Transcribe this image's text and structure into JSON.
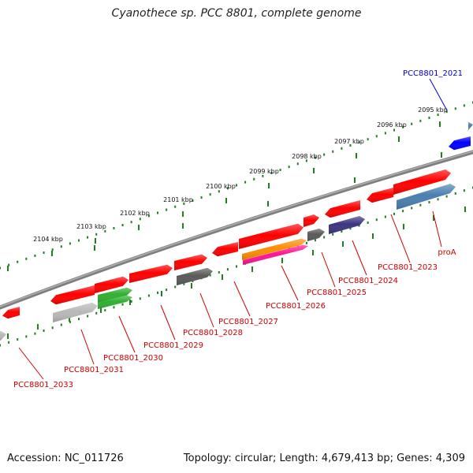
{
  "title": "Cyanothece sp. PCC 8801, complete genome",
  "footer": {
    "accession": "Accession: NC_011726",
    "summary": "Topology: circular; Length: 4,679,413 bp; Genes: 4,309"
  },
  "colors": {
    "backbone": "#7f7f7f",
    "tick_track": "#1f7f1f",
    "gene_red": "#ff0000",
    "gene_grey": "#5a5a5a",
    "gene_light_grey": "#b8b8b8",
    "gene_green": "#30b030",
    "gene_orange": "#ff8c00",
    "gene_magenta": "#ff1493",
    "gene_steelblue": "#4a7fb0",
    "gene_navy": "#3d3580",
    "gene_blue": "#0000ff",
    "label_red": "#cc0000",
    "label_blue": "#0000cc"
  },
  "ruler": [
    {
      "label": "2095 kbp",
      "pos_kbp": 2095
    },
    {
      "label": "2096 kbp",
      "pos_kbp": 2096
    },
    {
      "label": "2097 kbp",
      "pos_kbp": 2097
    },
    {
      "label": "2098 kbp",
      "pos_kbp": 2098
    },
    {
      "label": "2099 kbp",
      "pos_kbp": 2099
    },
    {
      "label": "2100 kbp",
      "pos_kbp": 2100
    },
    {
      "label": "2101 kbp",
      "pos_kbp": 2101
    },
    {
      "label": "2102 kbp",
      "pos_kbp": 2102
    },
    {
      "label": "2103 kbp",
      "pos_kbp": 2103
    },
    {
      "label": "2104 kbp",
      "pos_kbp": 2104
    }
  ],
  "gene_labels": [
    {
      "text": "PCC8801_2021",
      "color": "label_blue"
    },
    {
      "text": "proA",
      "color": "label_red"
    },
    {
      "text": "PCC8801_2023",
      "color": "label_red"
    },
    {
      "text": "PCC8801_2024",
      "color": "label_red"
    },
    {
      "text": "PCC8801_2025",
      "color": "label_red"
    },
    {
      "text": "PCC8801_2026",
      "color": "label_red"
    },
    {
      "text": "PCC8801_2027",
      "color": "label_red"
    },
    {
      "text": "PCC8801_2028",
      "color": "label_red"
    },
    {
      "text": "PCC8801_2029",
      "color": "label_red"
    },
    {
      "text": "PCC8801_2030",
      "color": "label_red"
    },
    {
      "text": "PCC8801_2031",
      "color": "label_red"
    },
    {
      "text": "PCC8801_2033",
      "color": "label_red"
    }
  ]
}
